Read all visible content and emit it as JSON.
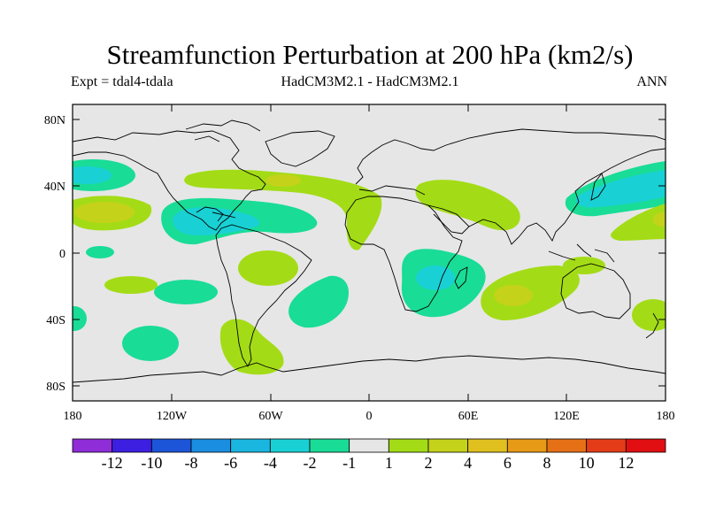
{
  "title": "Streamfunction Perturbation at 200 hPa (km2/s)",
  "subtitle_left": "Expt = tdal4-tdala",
  "subtitle_center": "HadCM3M2.1 - HadCM3M2.1",
  "subtitle_right": "ANN",
  "map": {
    "background": "#e6e6e6",
    "lat_labels": [
      "80N",
      "40N",
      "0",
      "40S",
      "80S"
    ],
    "lon_labels": [
      "180",
      "120W",
      "60W",
      "0",
      "60E",
      "120E",
      "180"
    ]
  },
  "colorbar": {
    "colors": [
      "#8f2dd9",
      "#3c1fe0",
      "#1d55d8",
      "#1a8ee0",
      "#1ab6e0",
      "#19d1d5",
      "#19dc97",
      "#e6e6e6",
      "#a3dc16",
      "#c5d21a",
      "#dfc01f",
      "#e79a16",
      "#e67016",
      "#e43c18",
      "#e20f12"
    ],
    "labels": [
      "-12",
      "-10",
      "-8",
      "-6",
      "-4",
      "-2",
      "-1",
      "1",
      "2",
      "4",
      "6",
      "8",
      "10",
      "12"
    ]
  },
  "chart_data": {
    "type": "contour-map",
    "variable": "Streamfunction Perturbation at 200 hPa",
    "units": "km2/s",
    "levels": [
      -12,
      -10,
      -8,
      -6,
      -4,
      -2,
      -1,
      1,
      2,
      4,
      6,
      8,
      10,
      12
    ],
    "lon_range": [
      -180,
      180
    ],
    "lat_range": [
      -90,
      90
    ],
    "features": [
      {
        "name": "North Atlantic negative lobe",
        "lon": -95,
        "lat": 20,
        "min_value": -4
      },
      {
        "name": "North Pacific negative anomaly",
        "lon": -170,
        "lat": 45,
        "min_value": -2
      },
      {
        "name": "Central Pacific positive anomaly",
        "lon": -165,
        "lat": 25,
        "max_value": 4
      },
      {
        "name": "East Asia / NW Pacific negative",
        "lon": 150,
        "lat": 40,
        "min_value": -4
      },
      {
        "name": "Southern Africa negative",
        "lon": 35,
        "lat": -20,
        "min_value": -4
      },
      {
        "name": "South Indian Ocean positive",
        "lon": 85,
        "lat": -25,
        "max_value": 4
      },
      {
        "name": "North Atlantic positive band",
        "lon": -40,
        "lat": 45,
        "max_value": 4
      },
      {
        "name": "Middle East positive",
        "lon": 60,
        "lat": 35,
        "max_value": 2
      },
      {
        "name": "Southern South America positive",
        "lon": -70,
        "lat": -50,
        "max_value": 2
      },
      {
        "name": "South Pacific negative",
        "lon": -140,
        "lat": -50,
        "min_value": -2
      }
    ]
  }
}
